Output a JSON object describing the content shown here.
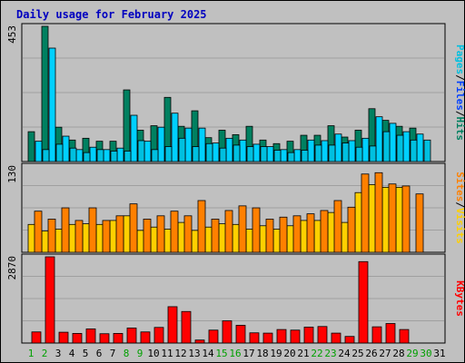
{
  "chart_data": [
    {
      "type": "bar",
      "panel": "hits-files-pages",
      "title": "Daily usage for February 2025",
      "y_max_label": "453",
      "ylim": [
        0,
        453
      ],
      "right_label_parts": [
        "Pages",
        "/",
        "Files",
        "/",
        "Hits"
      ],
      "right_label_colors": [
        "#00c0e0",
        "#000000",
        "#0040ff",
        "#000000",
        "#008060"
      ],
      "series": [
        {
          "name": "Hits",
          "color": "#008060",
          "values": [
            100,
            453,
            115,
            72,
            78,
            68,
            68,
            240,
            105,
            120,
            215,
            118,
            170,
            80,
            105,
            90,
            118,
            72,
            60,
            68,
            88,
            88,
            120,
            82,
            105,
            177,
            138,
            118,
            112,
            0,
            0
          ]
        },
        {
          "name": "Files",
          "color": "#00d0ff",
          "values": [
            68,
            380,
            85,
            40,
            48,
            40,
            45,
            155,
            68,
            115,
            162,
            112,
            112,
            62,
            78,
            72,
            58,
            50,
            40,
            40,
            72,
            70,
            92,
            70,
            78,
            150,
            128,
            100,
            92,
            0,
            0
          ]
        },
        {
          "name": "Pages",
          "color": "#00c0e0",
          "values": [
            40,
            58,
            45,
            30,
            40,
            35,
            35,
            70,
            40,
            50,
            78,
            50,
            60,
            45,
            55,
            50,
            50,
            38,
            30,
            38,
            55,
            55,
            62,
            48,
            52,
            100,
            88,
            72,
            72,
            0,
            0
          ]
        }
      ]
    },
    {
      "type": "bar",
      "panel": "visits-sites",
      "y_max_label": "130",
      "ylim": [
        0,
        130
      ],
      "right_label_parts": [
        "Sites",
        "/",
        "Visits"
      ],
      "right_label_colors": [
        "#ff8000",
        "#000000",
        "#ffd000"
      ],
      "series": [
        {
          "name": "Visits",
          "color": "#ffd000",
          "values": [
            42,
            32,
            35,
            42,
            43,
            42,
            48,
            55,
            33,
            38,
            35,
            45,
            33,
            38,
            43,
            42,
            35,
            40,
            35,
            40,
            48,
            48,
            60,
            45,
            90,
            102,
            98,
            98,
            0,
            0,
            0
          ]
        },
        {
          "name": "Sites",
          "color": "#ff8000",
          "values": [
            62,
            50,
            67,
            48,
            67,
            48,
            55,
            73,
            50,
            55,
            62,
            55,
            78,
            50,
            63,
            70,
            67,
            50,
            53,
            55,
            58,
            63,
            78,
            68,
            118,
            120,
            103,
            100,
            88,
            0,
            0
          ]
        }
      ]
    },
    {
      "type": "bar",
      "panel": "kbytes",
      "y_max_label": "2870",
      "ylim": [
        0,
        2870
      ],
      "right_label_parts": [
        "KBytes"
      ],
      "right_label_colors": [
        "#ff0000"
      ],
      "series": [
        {
          "name": "KBytes",
          "color": "#ff0000",
          "values": [
            370,
            2870,
            360,
            320,
            470,
            310,
            320,
            500,
            370,
            520,
            1210,
            1050,
            100,
            430,
            740,
            590,
            340,
            330,
            450,
            430,
            530,
            550,
            330,
            220,
            2710,
            540,
            650,
            450,
            0,
            0,
            0
          ]
        }
      ]
    }
  ],
  "x_axis": {
    "days": [
      "1",
      "2",
      "3",
      "4",
      "5",
      "6",
      "7",
      "8",
      "9",
      "10",
      "11",
      "12",
      "13",
      "14",
      "15",
      "16",
      "17",
      "18",
      "19",
      "20",
      "21",
      "22",
      "23",
      "24",
      "25",
      "26",
      "27",
      "28",
      "29",
      "30",
      "31"
    ],
    "weekend_days": [
      1,
      2,
      8,
      9,
      15,
      16,
      22,
      23,
      29,
      30
    ],
    "weekday_color": "#000000",
    "weekend_color": "#00a000"
  }
}
